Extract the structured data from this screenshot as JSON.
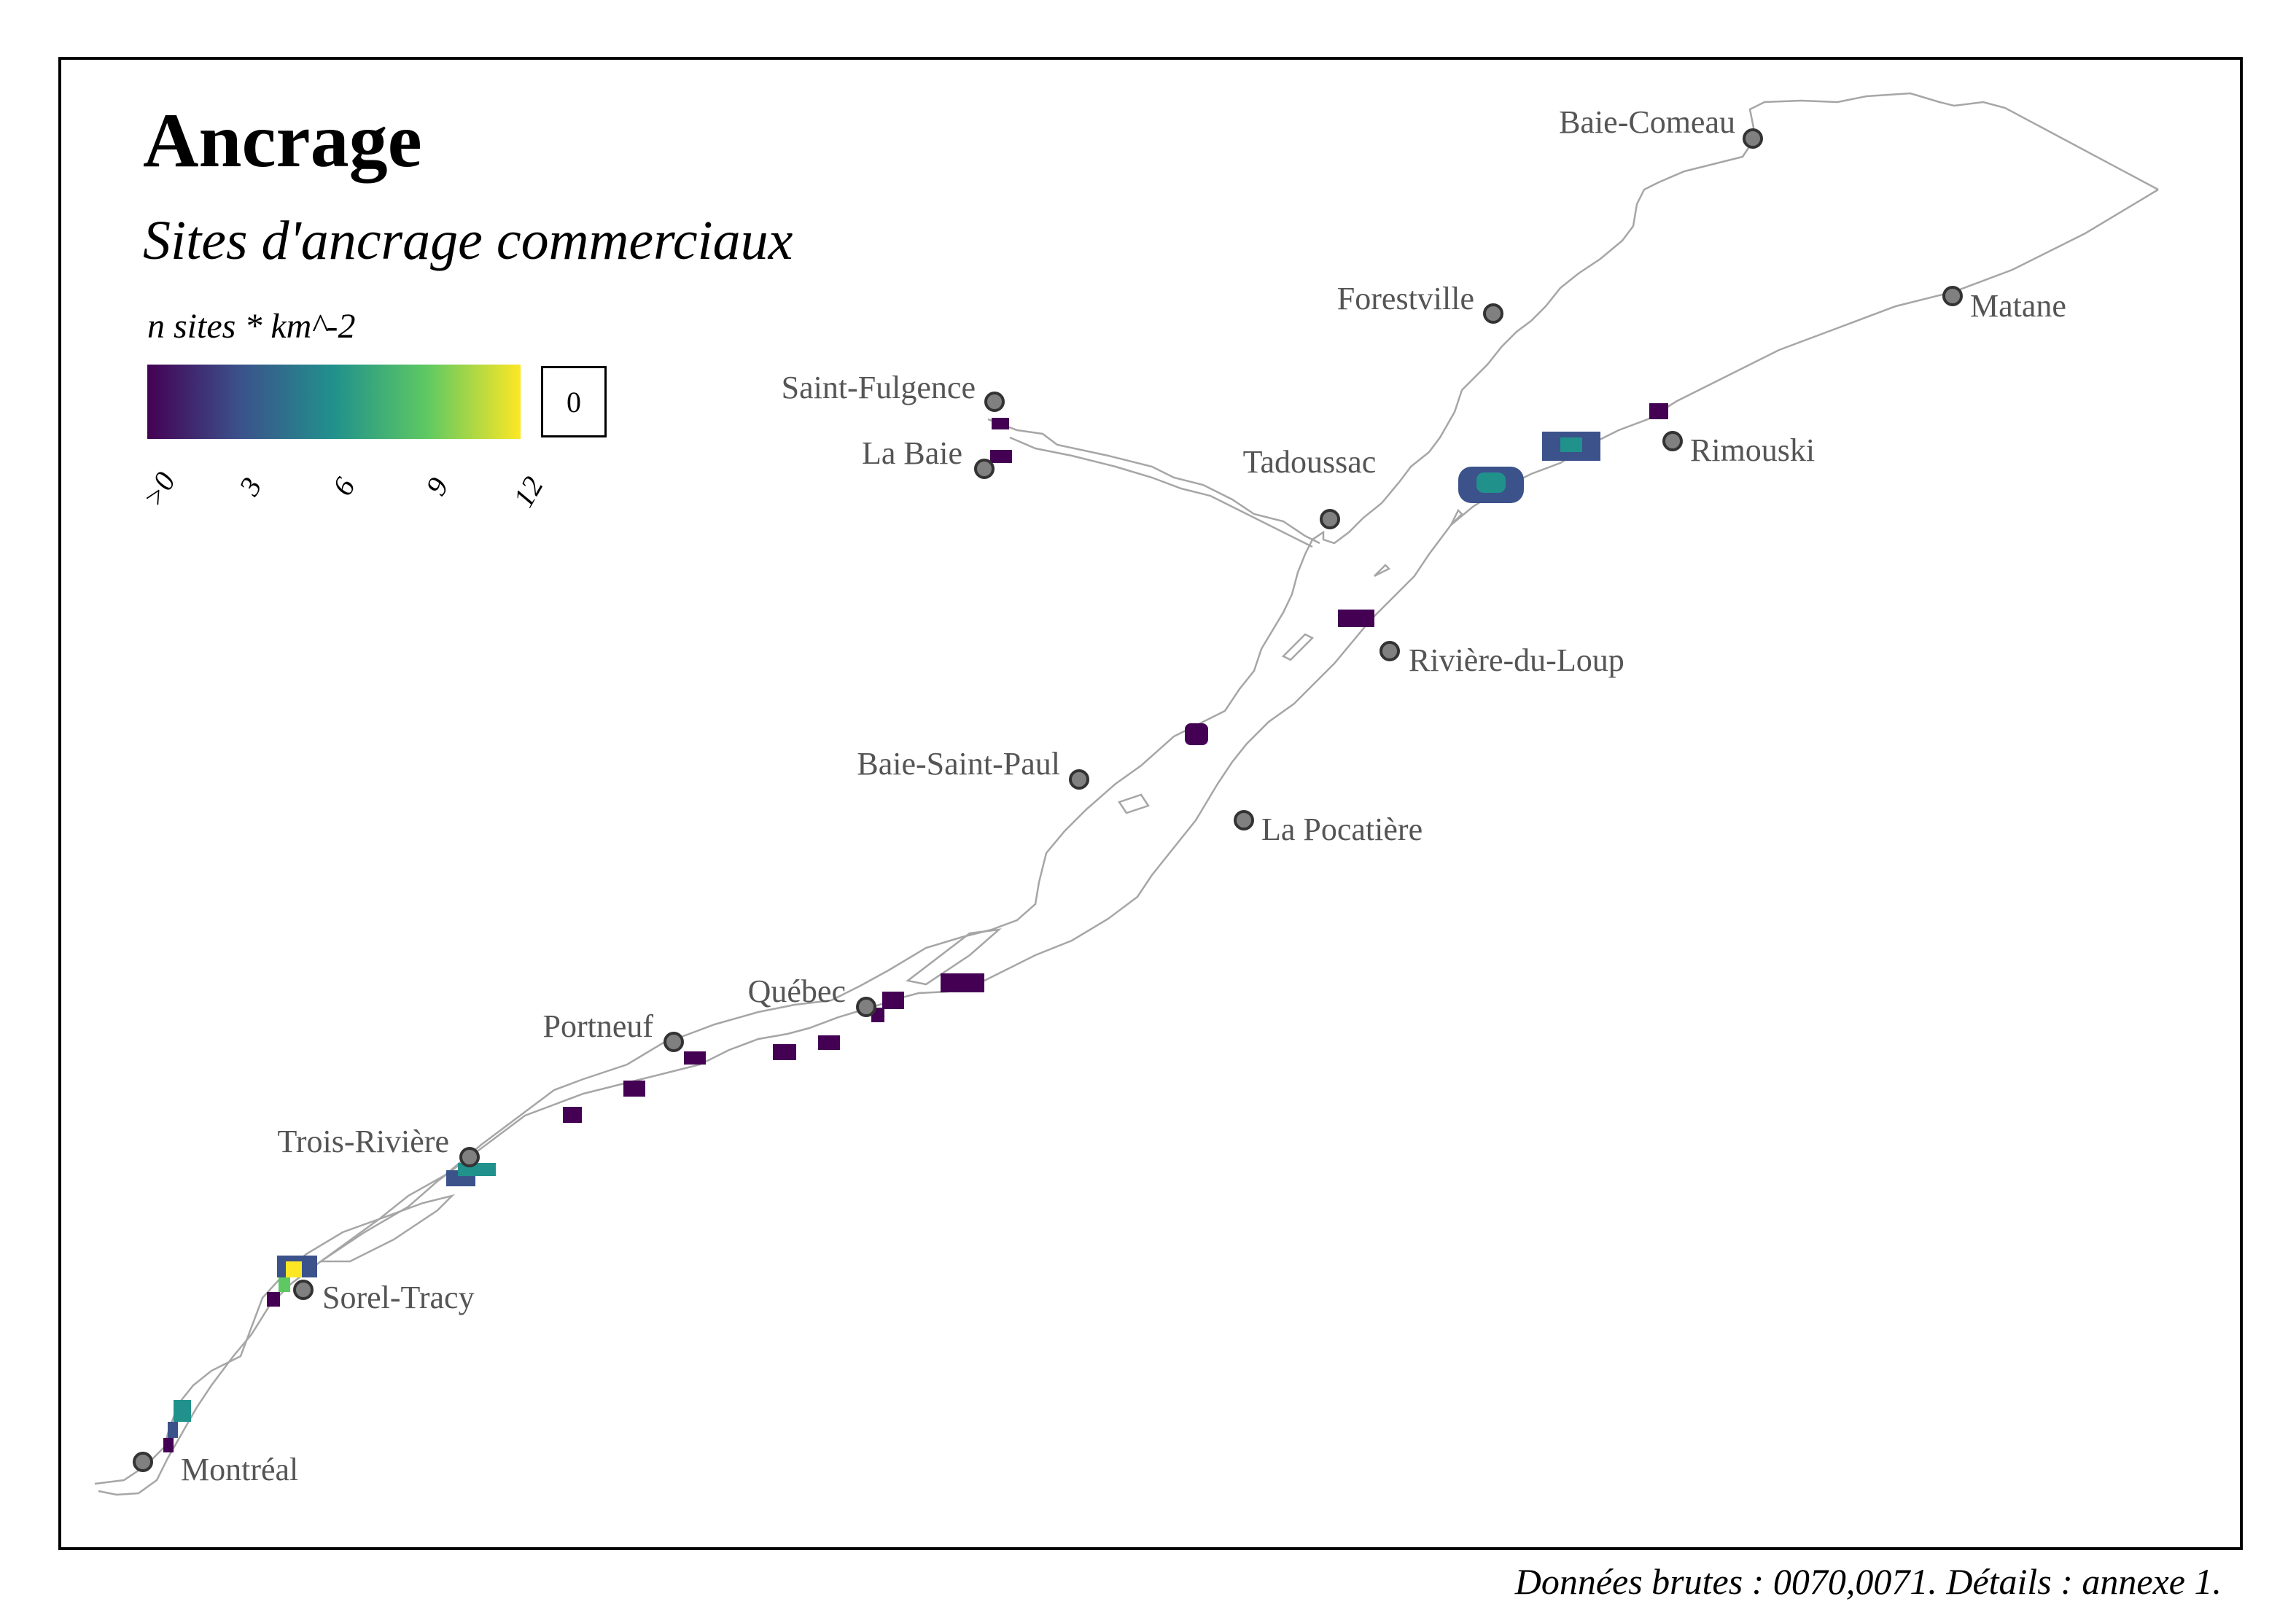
{
  "header": {
    "title": "Ancrage",
    "subtitle": "Sites d'ancrage commerciaux"
  },
  "legend": {
    "title": "n sites * km^-2",
    "ticks": [
      ">0",
      "3",
      "6",
      "9",
      "12"
    ],
    "zero_box": "0",
    "palette": [
      "#440154",
      "#3b528b",
      "#21918c",
      "#5ec962",
      "#fde725"
    ]
  },
  "cities": [
    {
      "name": "Baie-Comeau"
    },
    {
      "name": "Forestville"
    },
    {
      "name": "Matane"
    },
    {
      "name": "Saint-Fulgence"
    },
    {
      "name": "La Baie"
    },
    {
      "name": "Tadoussac"
    },
    {
      "name": "Rimouski"
    },
    {
      "name": "Rivière-du-Loup"
    },
    {
      "name": "Baie-Saint-Paul"
    },
    {
      "name": "La Pocatière"
    },
    {
      "name": "Québec"
    },
    {
      "name": "Portneuf"
    },
    {
      "name": "Trois-Rivière"
    },
    {
      "name": "Sorel-Tracy"
    },
    {
      "name": "Montréal"
    }
  ],
  "caption": "Données brutes : 0070,0071. Détails : annexe 1.",
  "colors": {
    "frame": "#000000",
    "coastline": "#a6a6a6",
    "city_marker": "#808080",
    "city_label": "#555555"
  }
}
